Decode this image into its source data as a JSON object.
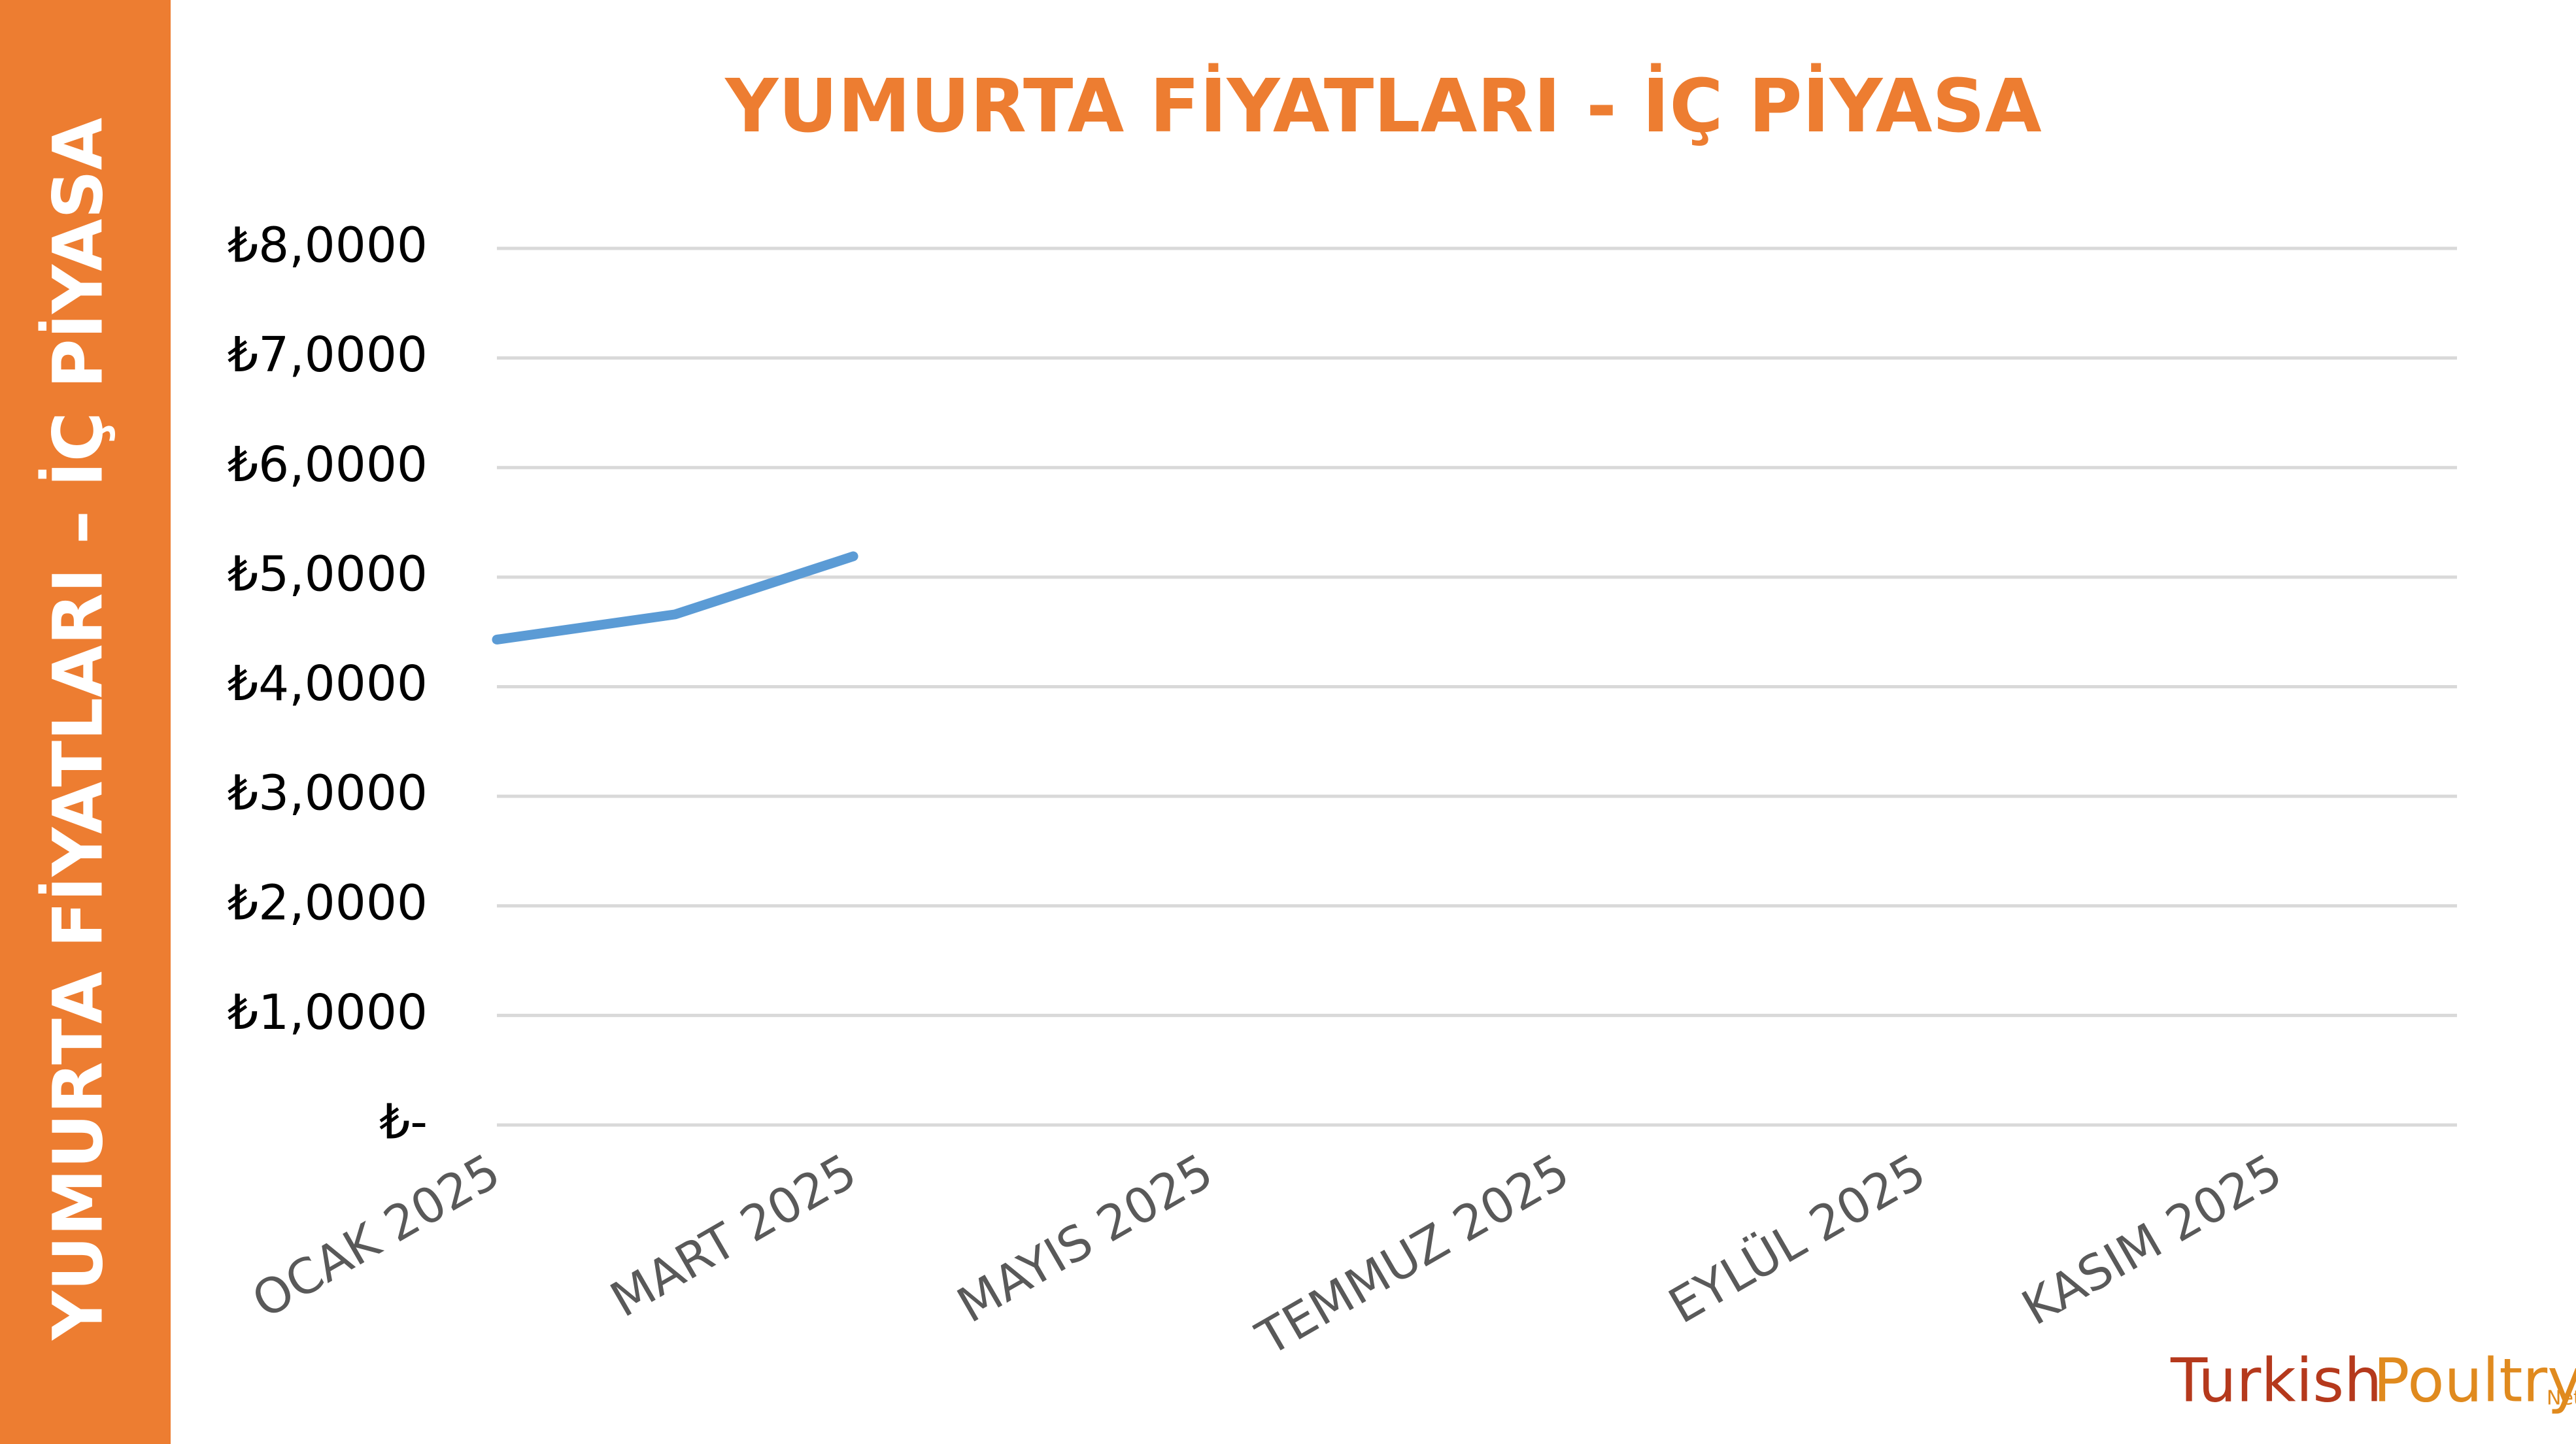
{
  "sidebar_title": "YUMURTA FİYATLARI – İÇ PİYASA",
  "logo": [
    "Turkish",
    "Poultry",
    "Net"
  ],
  "chart_data": {
    "type": "line",
    "title": "YUMURTA FİYATLARI - İÇ PİYASA",
    "categories": [
      "OCAK 2025",
      null,
      "MART 2025",
      null,
      "MAYIS 2025",
      null,
      "TEMMUZ 2025",
      null,
      "EYLÜL 2025",
      null,
      "KASIM 2025",
      null
    ],
    "series": [
      {
        "color": "#5B9BD5",
        "values": [
          4.43,
          4.66,
          5.19,
          null,
          null,
          null,
          null,
          null,
          null,
          null,
          null,
          null
        ]
      }
    ],
    "ylim": [
      0,
      8
    ],
    "yticks": [
      {
        "value": 0,
        "label": "₺-"
      },
      {
        "value": 1,
        "label": "₺1,0000"
      },
      {
        "value": 2,
        "label": "₺2,0000"
      },
      {
        "value": 3,
        "label": "₺3,0000"
      },
      {
        "value": 4,
        "label": "₺4,0000"
      },
      {
        "value": 5,
        "label": "₺5,0000"
      },
      {
        "value": 6,
        "label": "₺6,0000"
      },
      {
        "value": 7,
        "label": "₺7,0000"
      },
      {
        "value": 8,
        "label": "₺8,0000"
      }
    ],
    "grid": true
  }
}
